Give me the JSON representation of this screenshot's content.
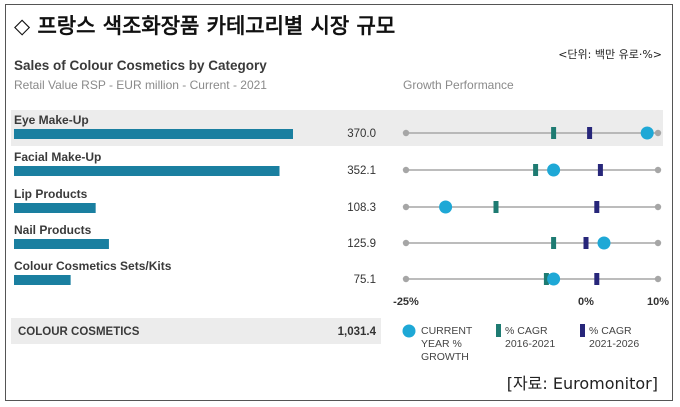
{
  "page": {
    "title": "◇ 프랑스 색조화장품 카테고리별 시장 규모",
    "unit_note": "<단위: 백만 유로·%>",
    "source": "[자료: Euromonitor]"
  },
  "colors": {
    "bar": "#1a7fa0",
    "current_marker": "#1ea8d6",
    "cagr_past_marker": "#1e7b72",
    "cagr_future_marker": "#27267a",
    "track_line": "#a6a6a6",
    "row_highlight": "#ececec"
  },
  "chart_data": {
    "type": "bar",
    "title": "Sales of Colour Cosmetics by Category",
    "subtitle": "Retail Value RSP - EUR million - Current - 2021",
    "growth_title": "Growth Performance",
    "categories": [
      "Eye Make-Up",
      "Facial Make-Up",
      "Lip Products",
      "Nail Products",
      "Colour Cosmetics Sets/Kits"
    ],
    "values": [
      370.0,
      352.1,
      108.3,
      125.9,
      75.1
    ],
    "value_labels": [
      "370.0",
      "352.1",
      "108.3",
      "125.9",
      "75.1"
    ],
    "total": {
      "label": "COLOUR COSMETICS",
      "value": 1031.4,
      "value_label": "1,031.4"
    },
    "growth": {
      "xlim": [
        -25,
        10
      ],
      "ticks": [
        {
          "value": -25,
          "label": "-25%"
        },
        {
          "value": 0,
          "label": "0%"
        },
        {
          "value": 10,
          "label": "10%"
        }
      ],
      "series": [
        {
          "name": "CURRENT YEAR % GROWTH",
          "values": [
            8.5,
            -4.5,
            -19.5,
            2.5,
            -4.5
          ]
        },
        {
          "name": "% CAGR 2016-2021",
          "values": [
            -4.5,
            -7.0,
            -12.5,
            -4.5,
            -5.5
          ]
        },
        {
          "name": "% CAGR 2021-2026",
          "values": [
            0.5,
            2.0,
            1.5,
            0.0,
            1.5
          ]
        }
      ]
    },
    "legend": {
      "position": "bottom",
      "items": [
        {
          "line1": "CURRENT",
          "line2": "YEAR %",
          "line3": "GROWTH"
        },
        {
          "line1": "% CAGR",
          "line2": "2016-2021"
        },
        {
          "line1": "% CAGR",
          "line2": "2021-2026"
        }
      ]
    }
  }
}
